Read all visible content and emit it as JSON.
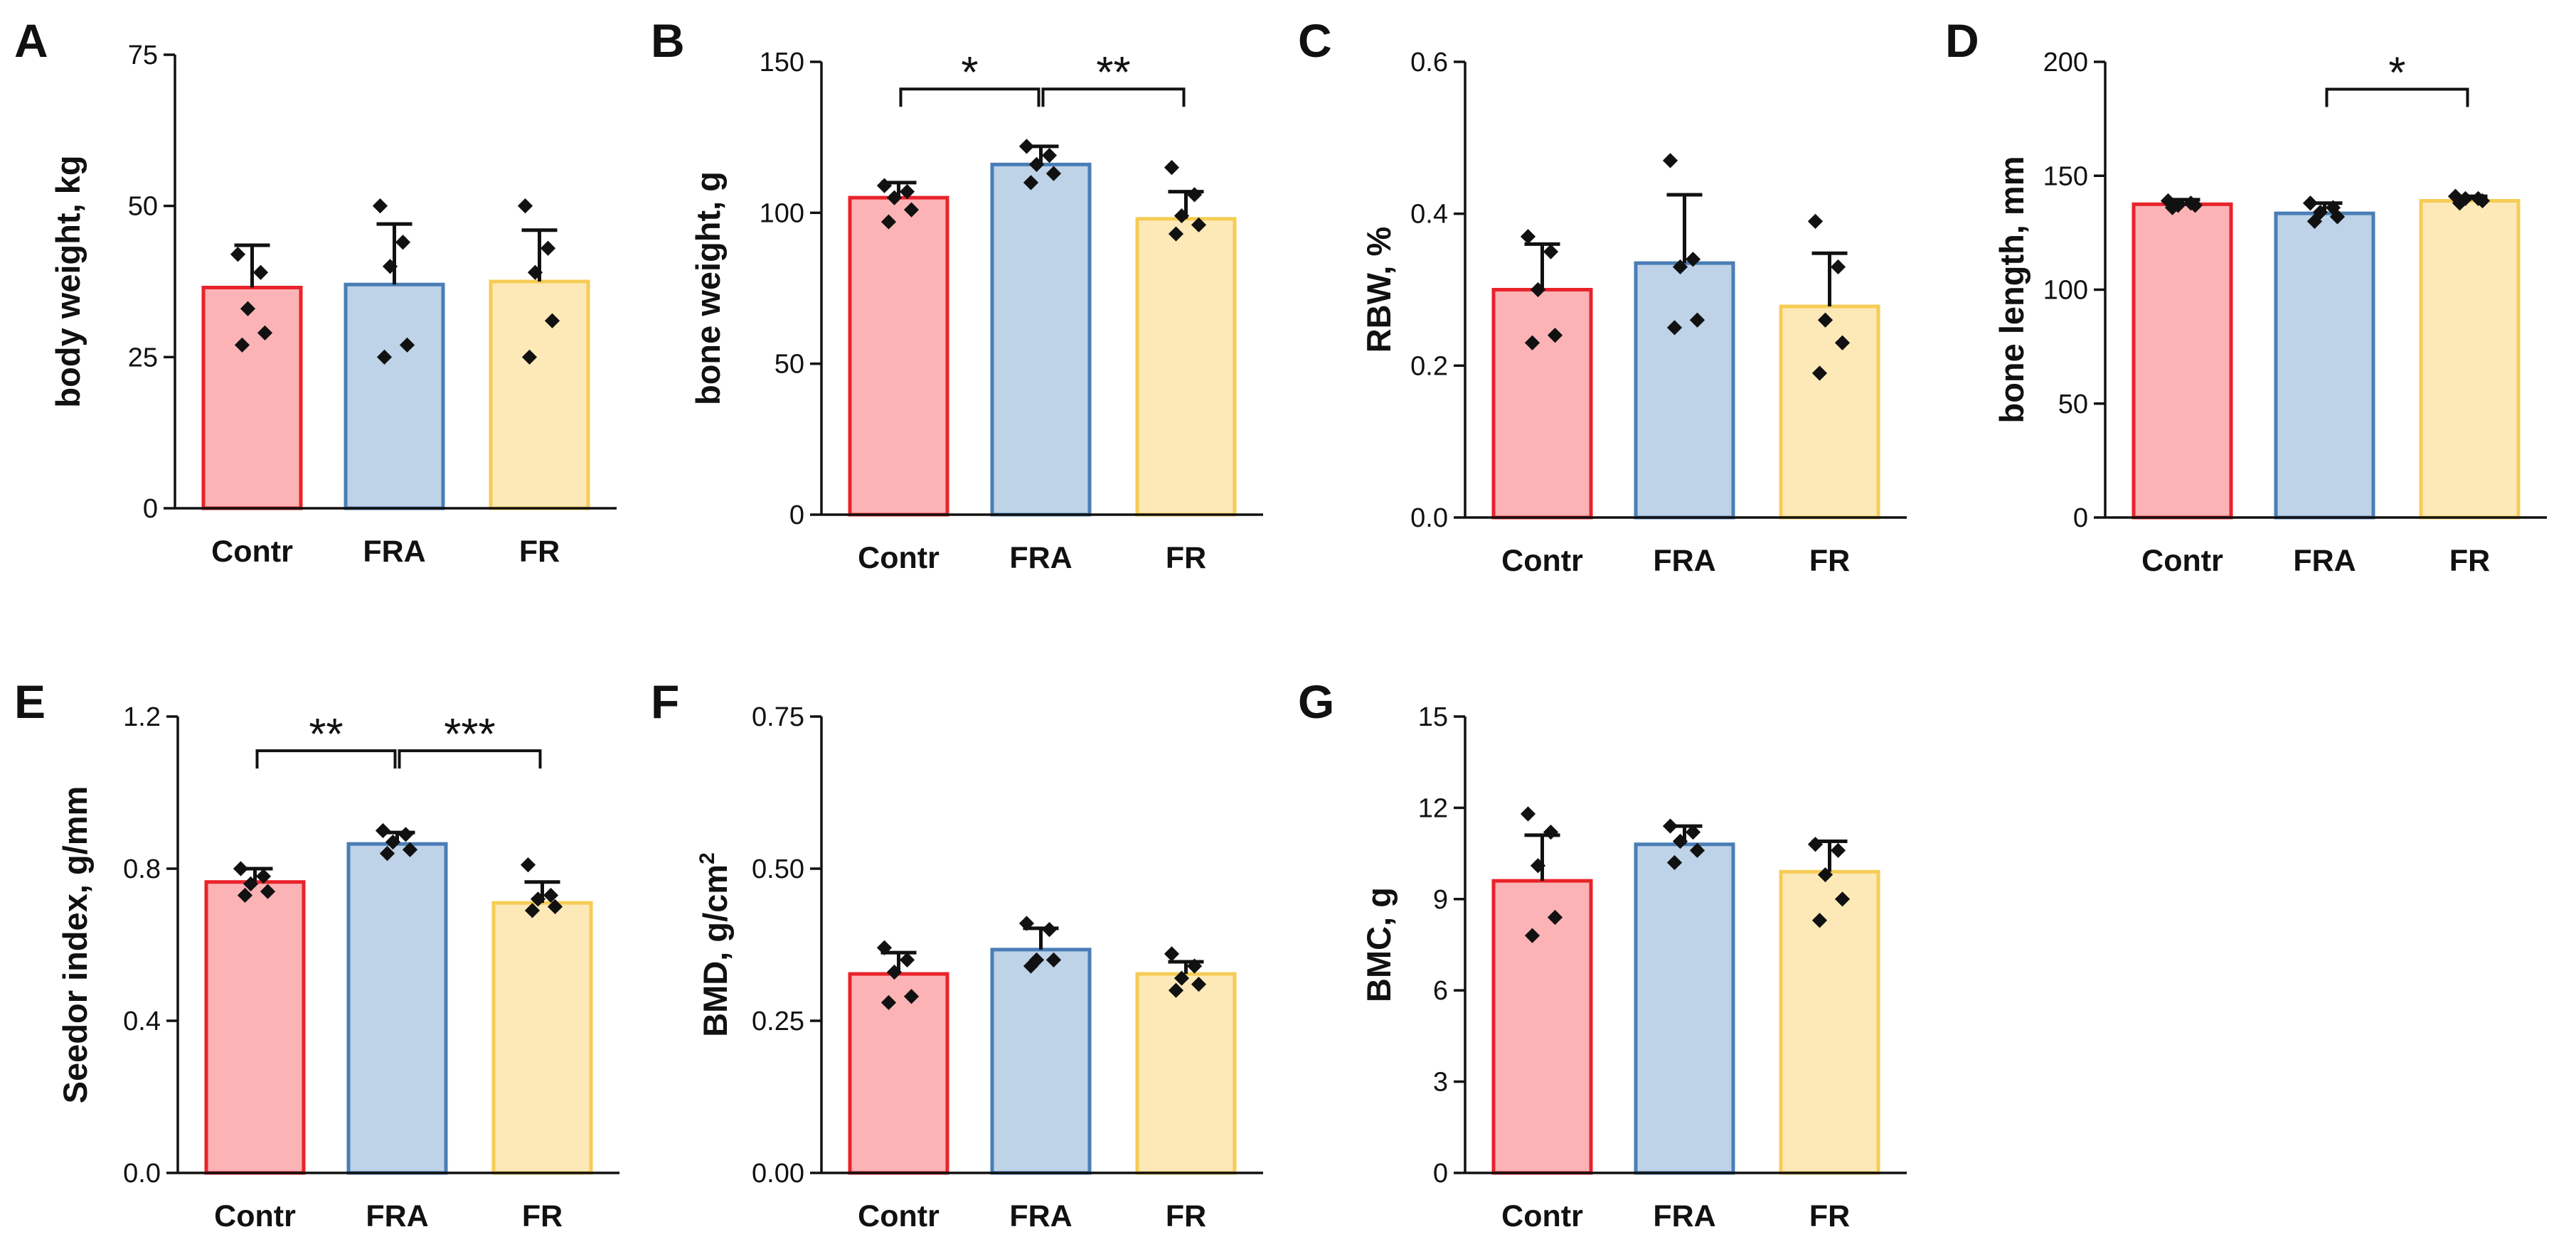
{
  "chart_data": [
    {
      "id": "A",
      "panel": "A",
      "type": "bar",
      "categories": [
        "Contr",
        "FRA",
        "FR"
      ],
      "values": [
        36.5,
        37,
        37.5
      ],
      "errors": [
        7,
        10,
        8.5
      ],
      "points": [
        [
          42,
          39,
          33,
          29,
          27
        ],
        [
          50,
          44,
          40,
          27,
          25
        ],
        [
          50,
          43,
          39,
          31,
          25
        ]
      ],
      "ylabel": "body weight, kg",
      "ylim": [
        0,
        75
      ],
      "yticks": [
        0,
        25,
        50,
        75
      ],
      "tick_labels": [
        "0",
        "25",
        "50",
        "75"
      ],
      "significance": []
    },
    {
      "id": "B",
      "panel": "B",
      "type": "bar",
      "categories": [
        "Contr",
        "FRA",
        "FR"
      ],
      "values": [
        105,
        116,
        98
      ],
      "errors": [
        5,
        6,
        9
      ],
      "points": [
        [
          109,
          107,
          105,
          101,
          97
        ],
        [
          122,
          119,
          116,
          113,
          110
        ],
        [
          115,
          106,
          99,
          96,
          93
        ]
      ],
      "ylabel": "bone weight, g",
      "ylim": [
        0,
        150
      ],
      "yticks": [
        0,
        50,
        100,
        150
      ],
      "tick_labels": [
        "0",
        "50",
        "100",
        "150"
      ],
      "significance": [
        {
          "from": 0,
          "to": 1,
          "label": "*",
          "y": 141
        },
        {
          "from": 1,
          "to": 2,
          "label": "**",
          "y": 141
        }
      ]
    },
    {
      "id": "C",
      "panel": "C",
      "type": "bar",
      "categories": [
        "Contr",
        "FRA",
        "FR"
      ],
      "values": [
        0.3,
        0.335,
        0.278
      ],
      "errors": [
        0.06,
        0.09,
        0.07
      ],
      "points": [
        [
          0.37,
          0.35,
          0.3,
          0.24,
          0.23
        ],
        [
          0.47,
          0.34,
          0.33,
          0.26,
          0.25
        ],
        [
          0.39,
          0.33,
          0.26,
          0.23,
          0.19
        ]
      ],
      "ylabel": "RBW, %",
      "ylim": [
        0,
        0.6
      ],
      "yticks": [
        0,
        0.2,
        0.4,
        0.6
      ],
      "tick_labels": [
        "0.0",
        "0.2",
        "0.4",
        "0.6"
      ],
      "significance": []
    },
    {
      "id": "D",
      "panel": "D",
      "type": "bar",
      "categories": [
        "Contr",
        "FRA",
        "FR"
      ],
      "values": [
        137.5,
        133.5,
        139
      ],
      "errors": [
        2,
        4.5,
        2
      ],
      "points": [
        [
          139,
          138,
          137,
          137,
          136
        ],
        [
          138,
          136,
          134,
          132,
          130
        ],
        [
          141,
          140,
          140,
          139,
          138
        ]
      ],
      "ylabel": "bone length, mm",
      "ylim": [
        0,
        200
      ],
      "yticks": [
        0,
        50,
        100,
        150,
        200
      ],
      "tick_labels": [
        "0",
        "50",
        "100",
        "150",
        "200"
      ],
      "significance": [
        {
          "from": 1,
          "to": 2,
          "label": "*",
          "y": 188
        }
      ]
    },
    {
      "id": "E",
      "panel": "E",
      "type": "bar",
      "categories": [
        "Contr",
        "FRA",
        "FR"
      ],
      "values": [
        0.765,
        0.865,
        0.71
      ],
      "errors": [
        0.035,
        0.03,
        0.055
      ],
      "points": [
        [
          0.8,
          0.78,
          0.76,
          0.74,
          0.73
        ],
        [
          0.9,
          0.89,
          0.87,
          0.85,
          0.84
        ],
        [
          0.81,
          0.73,
          0.72,
          0.7,
          0.69
        ]
      ],
      "ylabel": "Seedor index, g/mm",
      "ylim": [
        0,
        1.2
      ],
      "yticks": [
        0,
        0.4,
        0.8,
        1.2
      ],
      "tick_labels": [
        "0.0",
        "0.4",
        "0.8",
        "1.2"
      ],
      "significance": [
        {
          "from": 0,
          "to": 1,
          "label": "**",
          "y": 1.11
        },
        {
          "from": 1,
          "to": 2,
          "label": "***",
          "y": 1.11
        }
      ]
    },
    {
      "id": "F",
      "panel": "F",
      "type": "bar",
      "categories": [
        "Contr",
        "FRA",
        "FR"
      ],
      "values": [
        0.327,
        0.367,
        0.327
      ],
      "errors": [
        0.035,
        0.035,
        0.02
      ],
      "points": [
        [
          0.37,
          0.35,
          0.33,
          0.29,
          0.28
        ],
        [
          0.41,
          0.4,
          0.35,
          0.35,
          0.34
        ],
        [
          0.36,
          0.34,
          0.32,
          0.31,
          0.3
        ]
      ],
      "ylabel": "BMD, g/cm",
      "ylabel_sup": "2",
      "ylim": [
        0,
        0.75
      ],
      "yticks": [
        0,
        0.25,
        0.5,
        0.75
      ],
      "tick_labels": [
        "0.00",
        "0.25",
        "0.50",
        "0.75"
      ],
      "significance": []
    },
    {
      "id": "G",
      "panel": "G",
      "type": "bar",
      "categories": [
        "Contr",
        "FRA",
        "FR"
      ],
      "values": [
        9.6,
        10.8,
        9.9
      ],
      "errors": [
        1.5,
        0.6,
        1.0
      ],
      "points": [
        [
          11.8,
          11.2,
          10.1,
          8.4,
          7.8
        ],
        [
          11.4,
          11.2,
          10.9,
          10.6,
          10.2
        ],
        [
          10.8,
          10.6,
          9.8,
          9,
          8.3
        ]
      ],
      "ylabel": "BMC, g",
      "ylim": [
        0,
        15
      ],
      "yticks": [
        0,
        3,
        6,
        9,
        12,
        15
      ],
      "tick_labels": [
        "0",
        "3",
        "6",
        "9",
        "12",
        "15"
      ],
      "significance": []
    }
  ],
  "colors": {
    "fills": [
      "#fbb3b6",
      "#bed2e8",
      "#fde9b8"
    ],
    "strokes": [
      "#e8232a",
      "#4a7db5",
      "#f6cc55"
    ],
    "axis": "#111111"
  }
}
